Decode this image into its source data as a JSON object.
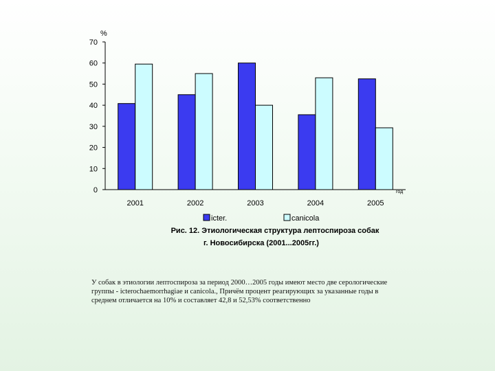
{
  "chart_data": {
    "type": "bar",
    "categories": [
      "2001",
      "2002",
      "2003",
      "2004",
      "2005"
    ],
    "series": [
      {
        "name": "icter.",
        "values": [
          40.8,
          45,
          60,
          35.5,
          52.5
        ],
        "color": "#3b3bf0"
      },
      {
        "name": "canicola",
        "values": [
          59.5,
          55,
          40,
          53,
          29.3
        ],
        "color": "#ccfcff"
      }
    ],
    "ylabel": "%",
    "xlabel": "год",
    "ylim": [
      0,
      70
    ],
    "yticks": [
      0,
      10,
      20,
      30,
      40,
      50,
      60,
      70
    ],
    "grid": false,
    "legend_position": "bottom"
  },
  "caption": {
    "line1": "Рис. 12. Этиологическая структура лептоспироза собак",
    "line2": "г. Новосибирска (2001...2005гг.)"
  },
  "body_text": {
    "line1": "У собак в этиологии лептоспироза за период 2000…2005 годы имеют место две серологические",
    "line2": "группы - icterochaemorrhagiae и canicola., Причём процент реагирующих за указанные годы в",
    "line3": "среднем отличается на 10% и составляет 42,8 и 52,53% соответственно"
  }
}
